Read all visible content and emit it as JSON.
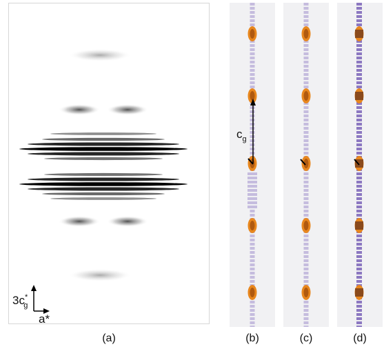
{
  "figure": {
    "panel_a": {
      "caption": "(a)",
      "axis_vertical_label": "3c",
      "axis_vertical_sup": "*",
      "axis_vertical_sub": "g",
      "axis_horizontal_label": "a*"
    },
    "panel_b": {
      "caption": "(b)",
      "vector_label": "c",
      "vector_sub": "g"
    },
    "panel_c": {
      "caption": "(c)"
    },
    "panel_d": {
      "caption": "(d)"
    },
    "colors": {
      "orange": "#e8871e",
      "dark_orange": "#b05a10",
      "purple": "#6a4fb0",
      "brown": "#8a4a1c",
      "frame": "#d6d6d6",
      "strip_bg": "#f1f1f3"
    }
  }
}
